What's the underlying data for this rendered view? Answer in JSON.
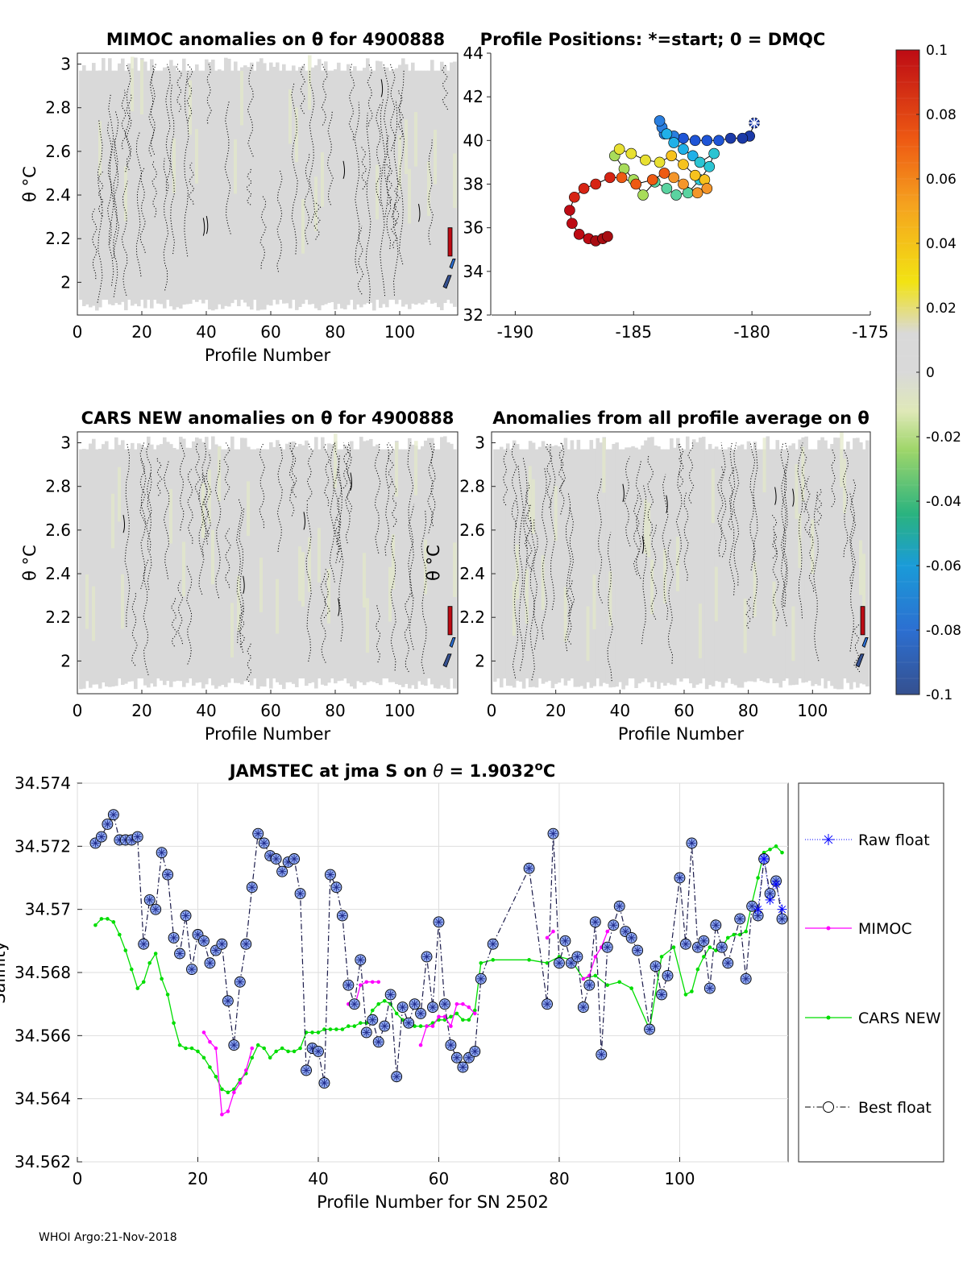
{
  "footer": "WHOI Argo:21-Nov-2018",
  "colors": {
    "raw": "#0000ff",
    "mimoc": "#ff00ff",
    "cars": "#00dd00",
    "best": "#000000",
    "marker_fill": "#8ea8f0",
    "contour_bg": "#d9d9d9"
  },
  "chart_data": [
    {
      "id": "mimoc",
      "type": "heatmap",
      "title": "MIMOC anomalies on θ  for 4900888",
      "xlabel": "Profile Number",
      "ylabel": "θ °C",
      "xlim": [
        0,
        118
      ],
      "ylim": [
        1.85,
        3.05
      ],
      "xticks": [
        0,
        20,
        40,
        60,
        80,
        100
      ],
      "yticks": [
        2,
        2.2,
        2.4,
        2.6,
        2.8,
        3
      ],
      "ytick_labels": [
        "2",
        "2.2",
        "2.4",
        "2.6",
        "2.8",
        "3"
      ]
    },
    {
      "id": "positions",
      "type": "scatter",
      "title": "Profile Positions: *=start; 0 = DMQC",
      "xlabel": "",
      "ylabel": "",
      "xlim": [
        -191,
        -175
      ],
      "ylim": [
        32,
        44
      ],
      "xticks": [
        -190,
        -185,
        -180,
        -175
      ],
      "yticks": [
        32,
        34,
        36,
        38,
        40,
        42,
        44
      ],
      "track_lon": [
        -179.9,
        -180.1,
        -180.4,
        -180.9,
        -181.4,
        -181.9,
        -182.4,
        -182.9,
        -183.3,
        -183.7,
        -183.8,
        -183.9,
        -183.6,
        -183.3,
        -182.9,
        -182.5,
        -182.2,
        -181.6,
        -181.8,
        -182.2,
        -182.7,
        -183.2,
        -183.6,
        -184.1,
        -184.6,
        -185.0,
        -185.4,
        -185.8,
        -185.6,
        -185.1,
        -184.5,
        -183.9,
        -183.4,
        -182.9,
        -182.4,
        -182.0,
        -181.9,
        -182.3,
        -182.9,
        -183.3,
        -183.7,
        -184.2,
        -184.9,
        -185.5,
        -186.0,
        -186.6,
        -187.1,
        -187.5,
        -187.7,
        -187.6,
        -187.3,
        -186.9,
        -186.6,
        -186.3,
        -186.1
      ],
      "track_lat": [
        40.8,
        40.2,
        40.1,
        40.1,
        40.0,
        40.0,
        40.0,
        40.1,
        40.2,
        40.3,
        40.6,
        40.9,
        40.3,
        39.9,
        39.6,
        39.3,
        39.0,
        39.4,
        38.8,
        38.2,
        37.6,
        37.5,
        37.8,
        38.1,
        37.5,
        38.2,
        38.7,
        39.3,
        39.6,
        39.4,
        39.1,
        39.0,
        39.3,
        38.9,
        38.4,
        38.2,
        37.8,
        37.6,
        38.0,
        38.3,
        38.5,
        38.2,
        38.0,
        38.3,
        38.3,
        38.0,
        37.8,
        37.4,
        36.8,
        36.2,
        35.7,
        35.5,
        35.4,
        35.5,
        35.6
      ],
      "start": {
        "lon": -179.9,
        "lat": 40.8
      }
    },
    {
      "id": "cars",
      "type": "heatmap",
      "title": "CARS NEW anomalies on θ for 4900888",
      "xlabel": "Profile Number",
      "ylabel": "θ °C",
      "xlim": [
        0,
        118
      ],
      "ylim": [
        1.85,
        3.05
      ],
      "xticks": [
        0,
        20,
        40,
        60,
        80,
        100
      ],
      "yticks": [
        2,
        2.2,
        2.4,
        2.6,
        2.8,
        3
      ],
      "ytick_labels": [
        "2",
        "2.2",
        "2.4",
        "2.6",
        "2.8",
        "3"
      ]
    },
    {
      "id": "allavg",
      "type": "heatmap",
      "title": "Anomalies from all profile average on θ",
      "xlabel": "Profile Number",
      "ylabel": "θ °C",
      "xlim": [
        0,
        118
      ],
      "ylim": [
        1.85,
        3.05
      ],
      "xticks": [
        0,
        20,
        40,
        60,
        80,
        100
      ],
      "yticks": [
        2,
        2.2,
        2.4,
        2.6,
        2.8,
        3
      ],
      "ytick_labels": [
        "2",
        "2.2",
        "2.4",
        "2.6",
        "2.8",
        "3"
      ]
    },
    {
      "id": "colorbar",
      "type": "colorbar",
      "range": [
        -0.1,
        0.1
      ],
      "tick_labels": [
        "0.1",
        "0.08",
        "0.06",
        "0.04",
        "0.02",
        "0",
        "-0.02",
        "-0.04",
        "-0.06",
        "-0.08",
        "-0.1"
      ]
    },
    {
      "id": "salinity",
      "type": "line",
      "title": "JAMSTEC at jma S on θ = 1.9032°C",
      "title_parts": [
        "JAMSTEC at jma S on ",
        "θ",
        " = 1.9032",
        "o",
        "C"
      ],
      "xlabel": "Profile Number for SN 2502",
      "ylabel": "Salinity",
      "xlim": [
        0,
        118
      ],
      "ylim": [
        34.562,
        34.574
      ],
      "xticks": [
        0,
        20,
        40,
        60,
        80,
        100
      ],
      "yticks": [
        34.562,
        34.564,
        34.566,
        34.568,
        34.57,
        34.572,
        34.574
      ],
      "ytick_labels": [
        "34.562",
        "34.564",
        "34.566",
        "34.568",
        "34.57",
        "34.572",
        "34.574"
      ],
      "legend": [
        "Raw float",
        "MIMOC",
        "CARS NEW",
        "Best float"
      ],
      "series": [
        {
          "name": "Best float",
          "x": [
            3,
            4,
            5,
            6,
            7,
            8,
            9,
            10,
            11,
            12,
            13,
            14,
            15,
            16,
            17,
            18,
            19,
            20,
            21,
            22,
            23,
            24,
            25,
            26,
            27,
            28,
            29,
            30,
            31,
            32,
            33,
            34,
            35,
            36,
            37,
            38,
            39,
            40,
            41,
            42,
            43,
            44,
            45,
            46,
            47,
            48,
            49,
            50,
            51,
            52,
            53,
            54,
            55,
            56,
            57,
            58,
            59,
            60,
            61,
            62,
            63,
            64,
            65,
            66,
            67,
            69,
            75,
            78,
            79,
            80,
            81,
            82,
            83,
            84,
            85,
            86,
            87,
            88,
            89,
            90,
            91,
            92,
            93,
            95,
            96,
            97,
            98,
            100,
            101,
            102,
            103,
            104,
            105,
            106,
            107,
            108,
            110,
            111,
            112,
            113,
            114,
            115,
            116,
            117
          ],
          "y": [
            34.5721,
            34.5723,
            34.5727,
            34.573,
            34.5722,
            34.5722,
            34.5722,
            34.5723,
            34.5689,
            34.5703,
            34.57,
            34.5718,
            34.5711,
            34.5691,
            34.5686,
            34.5698,
            34.5681,
            34.5692,
            34.569,
            34.5683,
            34.5687,
            34.5689,
            34.5671,
            34.5657,
            34.5677,
            34.5689,
            34.5707,
            34.5724,
            34.5721,
            34.5717,
            34.5716,
            34.5712,
            34.5715,
            34.5716,
            34.5705,
            34.5649,
            34.5656,
            34.5655,
            34.5645,
            34.5711,
            34.5707,
            34.5698,
            34.5676,
            34.567,
            34.5684,
            34.5661,
            34.5665,
            34.5658,
            34.5663,
            34.5673,
            34.5647,
            34.5669,
            34.5664,
            34.567,
            34.5667,
            34.5685,
            34.5669,
            34.5696,
            34.567,
            34.5657,
            34.5653,
            34.565,
            34.5653,
            34.5655,
            34.5678,
            34.5689,
            34.5713,
            34.567,
            34.5724,
            34.5683,
            34.569,
            34.5683,
            34.5685,
            34.5669,
            34.5676,
            34.5696,
            34.5654,
            34.5688,
            34.5695,
            34.5701,
            34.5693,
            34.5691,
            34.5687,
            34.5662,
            34.5682,
            34.5673,
            34.5679,
            34.571,
            34.5689,
            34.5721,
            34.5688,
            34.569,
            34.5675,
            34.5695,
            34.5688,
            34.5683,
            34.5697,
            34.5678,
            34.5701,
            34.5698,
            34.5716,
            34.5705,
            34.5709,
            34.5697
          ]
        },
        {
          "name": "Raw float",
          "x": [
            113,
            114,
            115,
            116,
            117
          ],
          "y": [
            34.57,
            34.5716,
            34.5703,
            34.5708,
            34.57
          ]
        },
        {
          "name": "MIMOC",
          "x": [
            21,
            22,
            23,
            24,
            25,
            26,
            27,
            28,
            29,
            45,
            46,
            47,
            48,
            49,
            50,
            57,
            58,
            59,
            60,
            61,
            62,
            63,
            64,
            65,
            66,
            78,
            79,
            84,
            85,
            86,
            87,
            88,
            89
          ],
          "y": [
            34.5661,
            34.5658,
            34.5656,
            34.5635,
            34.5636,
            34.5642,
            34.5645,
            34.5649,
            34.5656,
            34.567,
            34.5669,
            34.5676,
            34.5677,
            34.5677,
            34.5677,
            34.5657,
            34.5663,
            34.5663,
            34.5666,
            34.5666,
            34.5663,
            34.567,
            34.567,
            34.5669,
            34.5667,
            34.5691,
            34.5693,
            34.5678,
            34.5679,
            34.5685,
            34.5688,
            34.5693,
            34.5695
          ]
        },
        {
          "name": "CARS NEW",
          "x": [
            3,
            4,
            5,
            6,
            7,
            8,
            9,
            10,
            11,
            12,
            13,
            14,
            15,
            16,
            17,
            18,
            19,
            20,
            21,
            22,
            23,
            24,
            25,
            26,
            27,
            28,
            29,
            30,
            31,
            32,
            33,
            34,
            35,
            36,
            37,
            38,
            39,
            40,
            41,
            42,
            43,
            44,
            45,
            46,
            47,
            48,
            49,
            50,
            51,
            52,
            53,
            54,
            55,
            56,
            57,
            58,
            59,
            60,
            61,
            62,
            63,
            64,
            65,
            66,
            67,
            69,
            75,
            78,
            80,
            82,
            84,
            86,
            88,
            90,
            92,
            95,
            97,
            99,
            101,
            102,
            103,
            104,
            105,
            106,
            107,
            108,
            109,
            110,
            111,
            112,
            113,
            114,
            115,
            116,
            117
          ],
          "y": [
            34.5695,
            34.5697,
            34.5697,
            34.5696,
            34.5692,
            34.5687,
            34.5681,
            34.5675,
            34.5677,
            34.5683,
            34.5686,
            34.5678,
            34.5673,
            34.5664,
            34.5657,
            34.5656,
            34.5656,
            34.5655,
            34.5653,
            34.565,
            34.5647,
            34.5643,
            34.5642,
            34.5643,
            34.5646,
            34.5648,
            34.5653,
            34.5657,
            34.5656,
            34.5653,
            34.5655,
            34.5656,
            34.5655,
            34.5655,
            34.5656,
            34.5661,
            34.5661,
            34.5661,
            34.5662,
            34.5662,
            34.5662,
            34.5662,
            34.5663,
            34.5663,
            34.5664,
            34.5664,
            34.5668,
            34.567,
            34.5671,
            34.567,
            34.5667,
            34.5665,
            34.5664,
            34.5663,
            34.5663,
            34.5663,
            34.5664,
            34.5665,
            34.5665,
            34.5666,
            34.5667,
            34.5665,
            34.5665,
            34.5668,
            34.5683,
            34.5684,
            34.5684,
            34.5683,
            34.5685,
            34.5684,
            34.5678,
            34.5679,
            34.5676,
            34.5677,
            34.5675,
            34.5662,
            34.5685,
            34.5688,
            34.5673,
            34.5674,
            34.5681,
            34.5685,
            34.5688,
            34.5687,
            34.5688,
            34.5691,
            34.5692,
            34.5692,
            34.5693,
            34.5702,
            34.571,
            34.5718,
            34.5719,
            34.572,
            34.5718
          ]
        }
      ]
    }
  ]
}
